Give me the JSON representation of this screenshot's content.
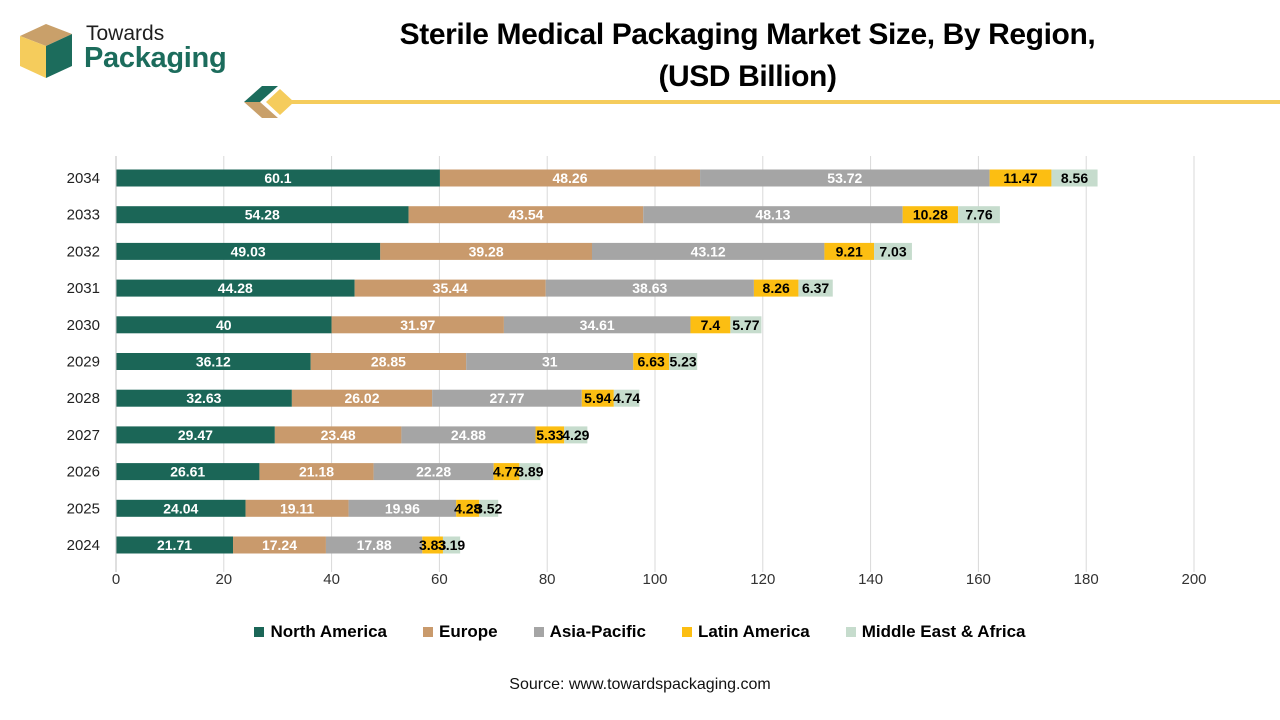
{
  "header": {
    "logo_top": "Towards",
    "logo_bottom": "Packaging",
    "title_line1": "Sterile Medical Packaging Market Size, By Region,",
    "title_line2": "(USD Billion)"
  },
  "source": "Source: www.towardspackaging.com",
  "colors": {
    "north_america": "#1b6657",
    "europe": "#c99a6c",
    "asia_pacific": "#a5a5a5",
    "latin_america": "#fcbe12",
    "middle_east_africa": "#c6dccd",
    "brand_green": "#1c6c5c",
    "brand_gold": "#f5cc5c",
    "brand_tan": "#c9a06a"
  },
  "chart_data": {
    "type": "bar",
    "orientation": "horizontal",
    "stacked": true,
    "title": "Sterile Medical Packaging Market Size, By Region, (USD Billion)",
    "categories": [
      "2034",
      "2033",
      "2032",
      "2031",
      "2030",
      "2029",
      "2028",
      "2027",
      "2026",
      "2025",
      "2024"
    ],
    "series": [
      {
        "name": "North America",
        "color": "#1b6657",
        "label_color": "#ffffff",
        "values": [
          60.1,
          54.28,
          49.03,
          44.28,
          40,
          36.12,
          32.63,
          29.47,
          26.61,
          24.04,
          21.71
        ]
      },
      {
        "name": "Europe",
        "color": "#c99a6c",
        "label_color": "#ffffff",
        "values": [
          48.26,
          43.54,
          39.28,
          35.44,
          31.97,
          28.85,
          26.02,
          23.48,
          21.18,
          19.11,
          17.24
        ]
      },
      {
        "name": "Asia-Pacific",
        "color": "#a5a5a5",
        "label_color": "#ffffff",
        "values": [
          53.72,
          48.13,
          43.12,
          38.63,
          34.61,
          31,
          27.77,
          24.88,
          22.28,
          19.96,
          17.88
        ]
      },
      {
        "name": "Latin America",
        "color": "#fcbe12",
        "label_color": "#000000",
        "values": [
          11.47,
          10.28,
          9.21,
          8.26,
          7.4,
          6.63,
          5.94,
          5.33,
          4.77,
          4.28,
          3.83
        ]
      },
      {
        "name": "Middle East & Africa",
        "color": "#c6dccd",
        "label_color": "#000000",
        "values": [
          8.56,
          7.76,
          7.03,
          6.37,
          5.77,
          5.23,
          4.74,
          4.29,
          3.89,
          3.52,
          3.19
        ]
      }
    ],
    "xlim": [
      0,
      200
    ],
    "xticks": [
      0,
      20,
      40,
      60,
      80,
      100,
      120,
      140,
      160,
      180,
      200
    ],
    "grid": "vertical",
    "legend_position": "bottom"
  }
}
